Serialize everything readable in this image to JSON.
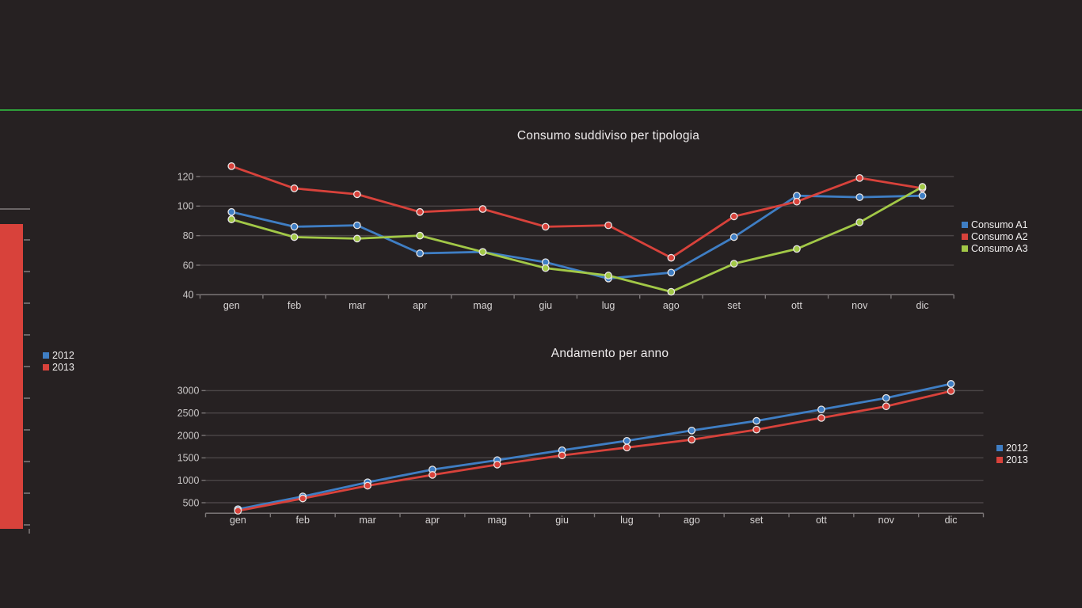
{
  "page": {
    "background": "#262122",
    "divider_color": "#2e9e3a",
    "colors": {
      "grid": "#4b4647",
      "axis": "#7a7576",
      "tick_text": "#c9c6c6",
      "month_text": "#d6d3d3",
      "title_text": "#efeced",
      "legend_text": "#f0eeee",
      "marker_stroke": "#e8e6e6",
      "series_blue": "#3f7ec4",
      "series_red": "#d8423b",
      "series_green": "#a2c847"
    }
  },
  "chart_data": [
    {
      "id": "consumo-tipologia",
      "type": "line",
      "title": "Consumo suddiviso per tipologia",
      "categories": [
        "gen",
        "feb",
        "mar",
        "apr",
        "mag",
        "giu",
        "lug",
        "ago",
        "set",
        "ott",
        "nov",
        "dic"
      ],
      "series": [
        {
          "name": "Consumo A1",
          "color": "#3f7ec4",
          "values": [
            96,
            86,
            87,
            68,
            69,
            62,
            51,
            55,
            79,
            107,
            106,
            107
          ]
        },
        {
          "name": "Consumo A2",
          "color": "#d8423b",
          "values": [
            127,
            112,
            108,
            96,
            98,
            86,
            87,
            65,
            93,
            103,
            119,
            112
          ]
        },
        {
          "name": "Consumo A3",
          "color": "#a2c847",
          "values": [
            91,
            79,
            78,
            80,
            69,
            58,
            53,
            42,
            61,
            71,
            89,
            113
          ]
        }
      ],
      "yticks": [
        40,
        60,
        80,
        100,
        120
      ],
      "ylim": [
        40,
        133
      ],
      "xlabel": "",
      "ylabel": "",
      "grid": "horizontal",
      "legend_position": "right"
    },
    {
      "id": "andamento-anno",
      "type": "line",
      "title": "Andamento per anno",
      "categories": [
        "gen",
        "feb",
        "mar",
        "apr",
        "mag",
        "giu",
        "lug",
        "ago",
        "set",
        "ott",
        "nov",
        "dic"
      ],
      "series": [
        {
          "name": "2012",
          "color": "#3f7ec4",
          "values": [
            355,
            640,
            955,
            1240,
            1450,
            1670,
            1880,
            2110,
            2325,
            2580,
            2835,
            3150
          ]
        },
        {
          "name": "2013",
          "color": "#d8423b",
          "values": [
            320,
            595,
            880,
            1120,
            1350,
            1555,
            1730,
            1905,
            2130,
            2390,
            2650,
            2990
          ]
        }
      ],
      "yticks": [
        500,
        1000,
        1500,
        2000,
        2500,
        3000
      ],
      "ylim": [
        270,
        3300
      ],
      "xlabel": "",
      "ylabel": "",
      "grid": "horizontal",
      "legend_position": "right"
    },
    {
      "id": "clipped-left-chart",
      "type": "bar",
      "title": "",
      "series": [
        {
          "name": "2012",
          "color": "#3f7ec4"
        },
        {
          "name": "2013",
          "color": "#d8423b"
        }
      ],
      "legend_position": "right"
    }
  ]
}
